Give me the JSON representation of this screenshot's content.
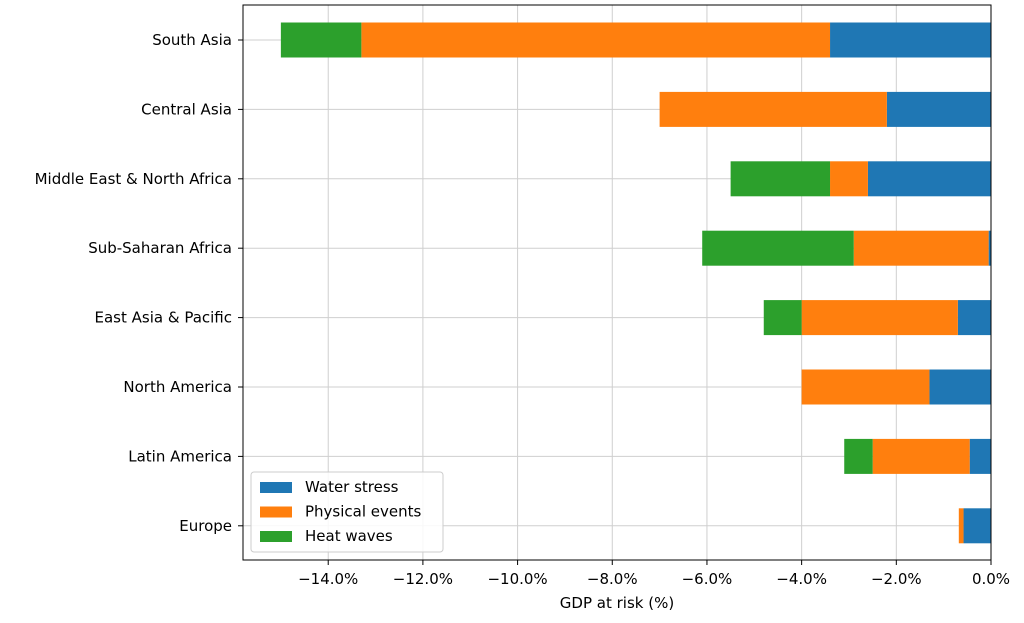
{
  "chart_data": {
    "type": "bar",
    "orientation": "horizontal",
    "stacked": true,
    "categories": [
      "South Asia",
      "Central Asia",
      "Middle East & North Africa",
      "Sub-Saharan Africa",
      "East Asia & Pacific",
      "North America",
      "Latin America",
      "Europe"
    ],
    "series": [
      {
        "name": "Water stress",
        "color": "#1f77b4",
        "values": [
          -3.4,
          -2.2,
          -2.6,
          -0.05,
          -0.7,
          -1.3,
          -0.45,
          -0.58
        ]
      },
      {
        "name": "Physical events",
        "color": "#ff7f0e",
        "values": [
          -9.9,
          -4.8,
          -0.8,
          -2.85,
          -3.3,
          -2.7,
          -2.05,
          -0.1
        ]
      },
      {
        "name": "Heat waves",
        "color": "#2ca02c",
        "values": [
          -1.7,
          0,
          -2.1,
          -3.2,
          -0.8,
          0,
          -0.6,
          0
        ]
      }
    ],
    "xlabel": "GDP at risk (%)",
    "ylabel": "",
    "title": "",
    "xlim": [
      -15.8,
      0
    ],
    "xticks": [
      -14,
      -12,
      -10,
      -8,
      -6,
      -4,
      -2,
      0
    ],
    "xtick_labels": [
      "−14.0%",
      "−12.0%",
      "−10.0%",
      "−8.0%",
      "−6.0%",
      "−4.0%",
      "−2.0%",
      "0.0%"
    ],
    "grid": true,
    "legend_position": "lower-left"
  }
}
